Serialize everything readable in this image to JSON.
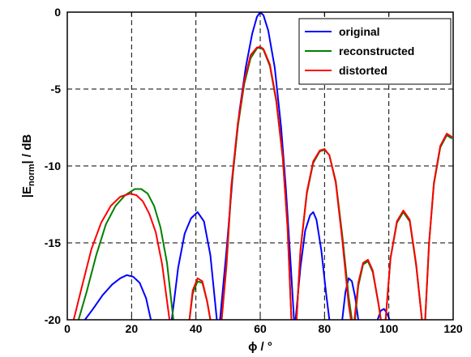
{
  "chart_data": {
    "type": "line",
    "xlabel": "ϕ / °",
    "ylabel": {
      "prefix": "|E",
      "subscript": "norm",
      "suffix": "| / dB"
    },
    "xlim": [
      0,
      120
    ],
    "ylim": [
      -20,
      0
    ],
    "xticks": [
      0,
      20,
      40,
      60,
      80,
      100,
      120
    ],
    "yticks": [
      -20,
      -15,
      -10,
      -5,
      0
    ],
    "grid": true,
    "grid_style": "dashed",
    "legend_position": "top-right",
    "series": [
      {
        "name": "original",
        "color": "#0000ff",
        "points": [
          [
            5.5,
            -20
          ],
          [
            8,
            -19.3
          ],
          [
            11,
            -18.4
          ],
          [
            14,
            -17.7
          ],
          [
            16.5,
            -17.3
          ],
          [
            18.5,
            -17.1
          ],
          [
            20.5,
            -17.2
          ],
          [
            22.5,
            -17.6
          ],
          [
            24.5,
            -18.6
          ],
          [
            26,
            -20
          ],
          [
            32.5,
            -20
          ],
          [
            34.5,
            -16.6
          ],
          [
            36.5,
            -14.4
          ],
          [
            38.5,
            -13.4
          ],
          [
            40.5,
            -13.0
          ],
          [
            42.5,
            -13.6
          ],
          [
            44.5,
            -15.8
          ],
          [
            46.5,
            -20
          ],
          [
            47.5,
            -20
          ],
          [
            49.5,
            -15.5
          ],
          [
            51.5,
            -10.5
          ],
          [
            53.5,
            -6.5
          ],
          [
            55.5,
            -3.6
          ],
          [
            57.5,
            -1.4
          ],
          [
            59,
            -0.3
          ],
          [
            60,
            0
          ],
          [
            61,
            -0.2
          ],
          [
            62.5,
            -1.2
          ],
          [
            64.5,
            -3.6
          ],
          [
            66.5,
            -7.5
          ],
          [
            68,
            -11.5
          ],
          [
            69.5,
            -16.5
          ],
          [
            70.5,
            -20
          ],
          [
            71,
            -20
          ],
          [
            72.5,
            -16.6
          ],
          [
            74,
            -14.2
          ],
          [
            75.5,
            -13.2
          ],
          [
            76.5,
            -13.0
          ],
          [
            77.5,
            -13.5
          ],
          [
            79,
            -15.5
          ],
          [
            80.5,
            -18.3
          ],
          [
            81.5,
            -20
          ],
          [
            85.5,
            -20
          ],
          [
            86.5,
            -18.2
          ],
          [
            87.5,
            -17.3
          ],
          [
            88.5,
            -17.5
          ],
          [
            89.5,
            -18.5
          ],
          [
            90.5,
            -20
          ],
          [
            96.5,
            -20
          ],
          [
            97.5,
            -19.4
          ],
          [
            98.5,
            -19.3
          ],
          [
            99.5,
            -19.6
          ],
          [
            100.2,
            -20
          ]
        ]
      },
      {
        "name": "reconstructed",
        "color": "#008000",
        "points": [
          [
            3.5,
            -20
          ],
          [
            6,
            -18.2
          ],
          [
            9,
            -15.8
          ],
          [
            12,
            -13.8
          ],
          [
            15,
            -12.6
          ],
          [
            18,
            -11.9
          ],
          [
            21,
            -11.5
          ],
          [
            23,
            -11.5
          ],
          [
            25,
            -11.8
          ],
          [
            27,
            -12.6
          ],
          [
            29,
            -14.0
          ],
          [
            31,
            -16.3
          ],
          [
            33,
            -20
          ],
          [
            38,
            -20
          ],
          [
            39,
            -18.3
          ],
          [
            40.5,
            -17.5
          ],
          [
            42,
            -17.6
          ],
          [
            43.5,
            -18.8
          ],
          [
            44.5,
            -20
          ],
          [
            48,
            -20
          ],
          [
            49.5,
            -16.5
          ],
          [
            51,
            -11.5
          ],
          [
            53,
            -7.5
          ],
          [
            55,
            -4.7
          ],
          [
            57,
            -3.0
          ],
          [
            59,
            -2.35
          ],
          [
            60,
            -2.3
          ],
          [
            61,
            -2.45
          ],
          [
            63,
            -3.5
          ],
          [
            65,
            -5.8
          ],
          [
            67,
            -9.5
          ],
          [
            68.5,
            -14
          ],
          [
            69.7,
            -20
          ],
          [
            71.3,
            -20
          ],
          [
            72.5,
            -15.5
          ],
          [
            74.5,
            -11.8
          ],
          [
            76.5,
            -9.8
          ],
          [
            78.5,
            -9.05
          ],
          [
            80,
            -8.95
          ],
          [
            81.5,
            -9.3
          ],
          [
            83.5,
            -11
          ],
          [
            85.5,
            -14.5
          ],
          [
            87.5,
            -18.5
          ],
          [
            88.5,
            -20
          ],
          [
            89.5,
            -20
          ],
          [
            90.5,
            -17.8
          ],
          [
            92,
            -16.4
          ],
          [
            93.5,
            -16.2
          ],
          [
            95,
            -16.9
          ],
          [
            96.8,
            -19
          ],
          [
            97.5,
            -20
          ],
          [
            99,
            -20
          ],
          [
            100.5,
            -16
          ],
          [
            102.5,
            -13.7
          ],
          [
            104.5,
            -13.0
          ],
          [
            106.5,
            -13.6
          ],
          [
            108.5,
            -16.5
          ],
          [
            110.3,
            -20
          ],
          [
            111.3,
            -20
          ],
          [
            112.5,
            -15
          ],
          [
            114,
            -11.2
          ],
          [
            116,
            -8.8
          ],
          [
            118,
            -8.0
          ],
          [
            119.5,
            -8.2
          ]
        ]
      },
      {
        "name": "distorted",
        "color": "#ff0000",
        "points": [
          [
            2,
            -20
          ],
          [
            4.5,
            -17.9
          ],
          [
            7.5,
            -15.4
          ],
          [
            10.5,
            -13.7
          ],
          [
            13.5,
            -12.6
          ],
          [
            16.5,
            -12.0
          ],
          [
            19.5,
            -11.8
          ],
          [
            21.5,
            -11.9
          ],
          [
            23.5,
            -12.3
          ],
          [
            25.5,
            -13.1
          ],
          [
            27.5,
            -14.3
          ],
          [
            29.5,
            -16.4
          ],
          [
            31.8,
            -20
          ],
          [
            38,
            -20
          ],
          [
            39,
            -18.1
          ],
          [
            40.5,
            -17.3
          ],
          [
            42,
            -17.5
          ],
          [
            43.5,
            -18.8
          ],
          [
            44.5,
            -20
          ],
          [
            48,
            -20
          ],
          [
            49.5,
            -16.3
          ],
          [
            51,
            -11.3
          ],
          [
            53,
            -7.3
          ],
          [
            55,
            -4.5
          ],
          [
            57,
            -2.8
          ],
          [
            59,
            -2.3
          ],
          [
            60,
            -2.25
          ],
          [
            61,
            -2.4
          ],
          [
            63,
            -3.4
          ],
          [
            65,
            -5.7
          ],
          [
            67,
            -9.4
          ],
          [
            68.5,
            -14
          ],
          [
            69.7,
            -20
          ],
          [
            71.3,
            -20
          ],
          [
            72.5,
            -15.5
          ],
          [
            74.5,
            -11.7
          ],
          [
            76.5,
            -9.7
          ],
          [
            78.5,
            -9.0
          ],
          [
            80,
            -8.9
          ],
          [
            81.5,
            -9.3
          ],
          [
            83.5,
            -11.1
          ],
          [
            85.5,
            -14.8
          ],
          [
            87.5,
            -19
          ],
          [
            88.2,
            -20
          ],
          [
            89.3,
            -20
          ],
          [
            90.5,
            -17.6
          ],
          [
            92,
            -16.3
          ],
          [
            93.5,
            -16.1
          ],
          [
            95,
            -16.8
          ],
          [
            96.8,
            -19
          ],
          [
            97.5,
            -20
          ],
          [
            99,
            -20
          ],
          [
            100.5,
            -16
          ],
          [
            102.5,
            -13.6
          ],
          [
            104.5,
            -12.9
          ],
          [
            106.5,
            -13.5
          ],
          [
            108.5,
            -16.4
          ],
          [
            110.3,
            -20
          ],
          [
            111.3,
            -20
          ],
          [
            112.5,
            -15
          ],
          [
            114,
            -11.1
          ],
          [
            116,
            -8.7
          ],
          [
            118,
            -7.9
          ],
          [
            119.5,
            -8.1
          ]
        ]
      }
    ]
  }
}
